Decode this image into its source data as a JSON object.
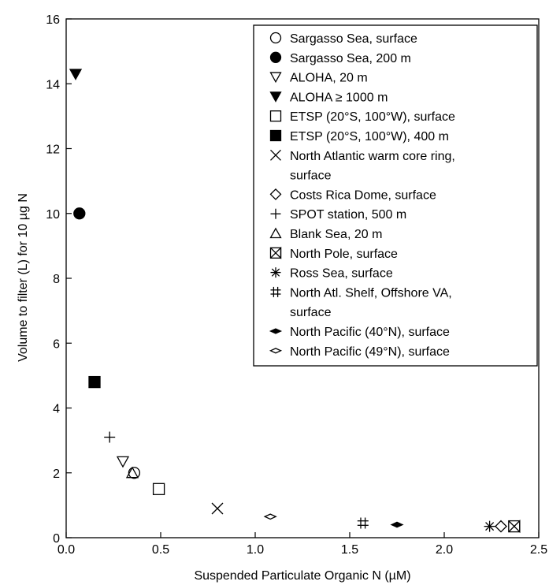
{
  "chart_data": {
    "type": "scatter",
    "title": "",
    "xlabel": "Suspended Particulate Organic N (µM)",
    "ylabel": "Volume to filter (L) for 10 µg N",
    "xlim": [
      0,
      2.5
    ],
    "ylim": [
      0,
      16
    ],
    "xticks": [
      "0.0",
      "0.5",
      "1.0",
      "1.5",
      "2.0",
      "2.5"
    ],
    "yticks": [
      "0",
      "2",
      "4",
      "6",
      "8",
      "10",
      "12",
      "14",
      "16"
    ],
    "grid": false,
    "legend_position": "top-right",
    "series": [
      {
        "name": "Sargasso Sea, surface",
        "marker": "circle-open",
        "x": 0.36,
        "y": 2.0
      },
      {
        "name": "Sargasso Sea, 200 m",
        "marker": "circle-filled",
        "x": 0.07,
        "y": 10.0
      },
      {
        "name": "ALOHA, 20 m",
        "marker": "triangle-down-open",
        "x": 0.3,
        "y": 2.35
      },
      {
        "name": "ALOHA ≥ 1000 m",
        "marker": "triangle-down-filled",
        "x": 0.05,
        "y": 14.3
      },
      {
        "name": "ETSP (20°S, 100°W), surface",
        "marker": "square-open",
        "x": 0.49,
        "y": 1.5
      },
      {
        "name": "ETSP (20°S, 100°W), 400 m",
        "marker": "square-filled",
        "x": 0.15,
        "y": 4.8
      },
      {
        "name": "North Atlantic warm core ring, surface",
        "marker": "x",
        "x": 0.8,
        "y": 0.9
      },
      {
        "name": "Costs Rica Dome, surface",
        "marker": "diamond-open",
        "x": 2.3,
        "y": 0.35
      },
      {
        "name": "SPOT station, 500 m",
        "marker": "plus",
        "x": 0.23,
        "y": 3.1
      },
      {
        "name": "Blank Sea, 20 m",
        "marker": "triangle-up-open",
        "x": 0.35,
        "y": 2.0
      },
      {
        "name": "North Pole, surface",
        "marker": "bowtie",
        "x": 2.37,
        "y": 0.35
      },
      {
        "name": "Ross Sea, surface",
        "marker": "asterisk",
        "x": 2.24,
        "y": 0.35
      },
      {
        "name": "North Atl. Shelf, Offshore VA, surface",
        "marker": "hash",
        "x": 1.57,
        "y": 0.45
      },
      {
        "name": "North Pacific (40°N), surface",
        "marker": "thin-diamond-filled",
        "x": 1.75,
        "y": 0.4
      },
      {
        "name": "North Pacific (49°N), surface",
        "marker": "thin-diamond-open",
        "x": 1.08,
        "y": 0.65
      }
    ],
    "legend": [
      {
        "marker": "circle-open",
        "lines": [
          "Sargasso Sea, surface"
        ]
      },
      {
        "marker": "circle-filled",
        "lines": [
          "Sargasso Sea, 200 m"
        ]
      },
      {
        "marker": "triangle-down-open",
        "lines": [
          "ALOHA, 20 m"
        ]
      },
      {
        "marker": "triangle-down-filled",
        "lines": [
          "ALOHA ≥ 1000 m"
        ]
      },
      {
        "marker": "square-open",
        "lines": [
          "ETSP (20°S, 100°W), surface"
        ]
      },
      {
        "marker": "square-filled",
        "lines": [
          "ETSP (20°S, 100°W), 400 m"
        ]
      },
      {
        "marker": "x",
        "lines": [
          "North Atlantic warm core ring,",
          "surface"
        ]
      },
      {
        "marker": "diamond-open",
        "lines": [
          "Costs Rica Dome, surface"
        ]
      },
      {
        "marker": "plus",
        "lines": [
          "SPOT station, 500 m"
        ]
      },
      {
        "marker": "triangle-up-open",
        "lines": [
          "Blank Sea, 20 m"
        ]
      },
      {
        "marker": "bowtie",
        "lines": [
          "North Pole, surface"
        ]
      },
      {
        "marker": "asterisk",
        "lines": [
          "Ross Sea, surface"
        ]
      },
      {
        "marker": "hash",
        "lines": [
          "North Atl. Shelf, Offshore VA,",
          "surface"
        ]
      },
      {
        "marker": "thin-diamond-filled",
        "lines": [
          "North Pacific (40°N), surface"
        ]
      },
      {
        "marker": "thin-diamond-open",
        "lines": [
          "North Pacific (49°N), surface"
        ]
      }
    ]
  }
}
